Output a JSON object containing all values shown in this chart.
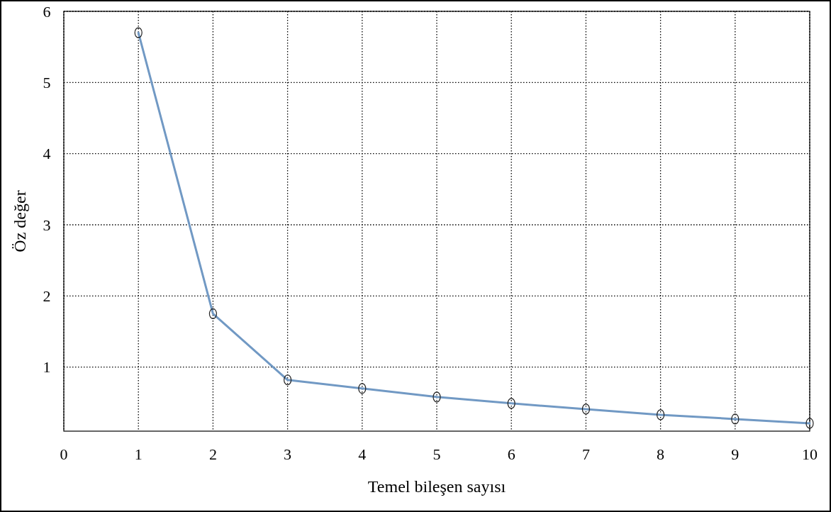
{
  "chart_data": {
    "type": "line",
    "xlabel": "Temel bileşen sayısı",
    "ylabel": "Öz değer",
    "x": [
      1,
      2,
      3,
      4,
      5,
      6,
      7,
      8,
      9,
      10
    ],
    "series": [
      {
        "color": "#7199c4",
        "values": [
          5.7,
          1.75,
          0.82,
          0.7,
          0.58,
          0.49,
          0.41,
          0.33,
          0.27,
          0.21
        ]
      }
    ],
    "xlim": [
      0,
      10
    ],
    "xticks": [
      0,
      1,
      2,
      3,
      4,
      5,
      6,
      7,
      8,
      9,
      10
    ],
    "ylim": [
      0.1,
      6
    ],
    "yticks": [
      1,
      2,
      3,
      4,
      5,
      6
    ],
    "grid": true,
    "marker": "circle",
    "line_style": "solid"
  }
}
